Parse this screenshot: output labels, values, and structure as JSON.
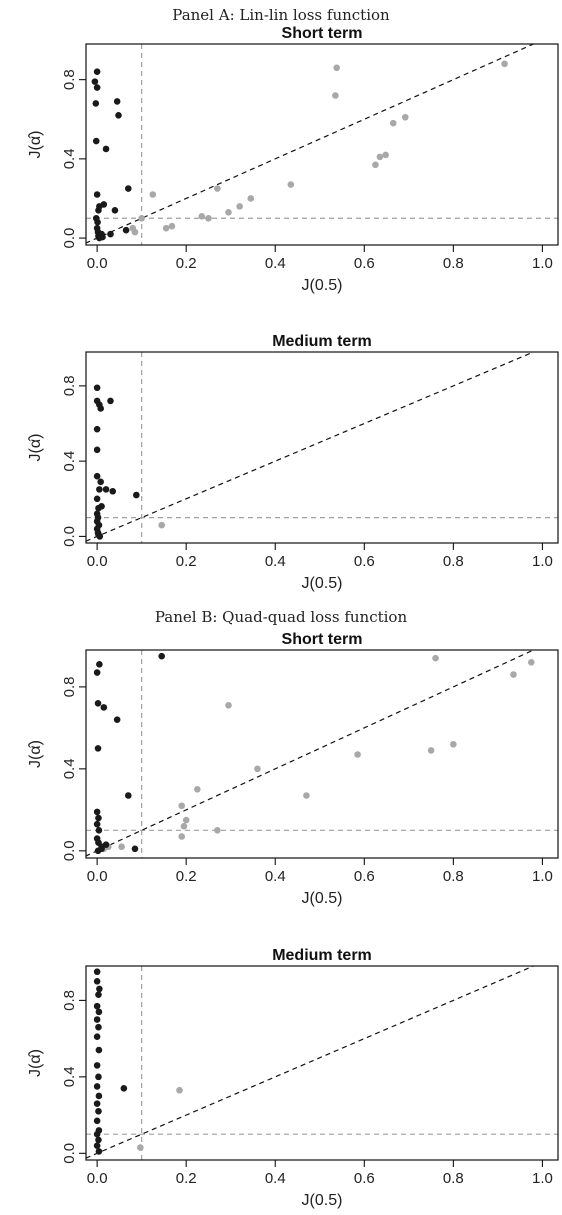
{
  "panels": [
    {
      "title": "Panel A: Lin-lin loss function"
    },
    {
      "title": "Panel B: Quad-quad loss function"
    }
  ],
  "styles": {
    "dark_point": "#1a1a1a",
    "light_point": "#a8a8a8",
    "diagonal": "#111111",
    "threshold": "#a0a0a0"
  },
  "chart_data": [
    {
      "type": "scatter",
      "panel": "Panel A: Lin-lin loss function",
      "title": "Short term",
      "xlabel": "J(0.5)",
      "ylabel": "J(α̂)",
      "xlim": [
        0,
        1.0
      ],
      "ylim": [
        0,
        0.9
      ],
      "xticks": [
        0.0,
        0.2,
        0.4,
        0.6,
        0.8,
        1.0
      ],
      "yticks": [
        0.0,
        0.4,
        0.8
      ],
      "xtick_labels": [
        "0.0",
        "0.2",
        "0.4",
        "0.6",
        "0.8",
        "1.0"
      ],
      "ytick_labels": [
        "0.0",
        "0.4",
        "0.8"
      ],
      "reference_lines": {
        "diagonal": "y = x",
        "horizontal": 0.1,
        "vertical": 0.1
      },
      "series": [
        {
          "color": "dark",
          "points": [
            [
              0,
              0.84
            ],
            [
              -0.005,
              0.79
            ],
            [
              0,
              0.76
            ],
            [
              -0.003,
              0.68
            ],
            [
              -0.002,
              0.49
            ],
            [
              0.02,
              0.45
            ],
            [
              0.045,
              0.69
            ],
            [
              0.048,
              0.62
            ],
            [
              0.07,
              0.25
            ],
            [
              0.015,
              0.17
            ],
            [
              0,
              0.22
            ],
            [
              0.005,
              0.16
            ],
            [
              0.003,
              0.14
            ],
            [
              -0.002,
              0.1
            ],
            [
              0.001,
              0.08
            ],
            [
              0.04,
              0.14
            ],
            [
              0,
              0.05
            ],
            [
              0.002,
              0.03
            ],
            [
              0.003,
              0.01
            ],
            [
              0.01,
              0.02
            ],
            [
              0.03,
              0.02
            ],
            [
              0.065,
              0.04
            ],
            [
              0.005,
              0.0
            ],
            [
              0.012,
              0.005
            ]
          ]
        },
        {
          "color": "light",
          "points": [
            [
              0.125,
              0.22
            ],
            [
              0.1,
              0.1
            ],
            [
              0.08,
              0.05
            ],
            [
              0.085,
              0.03
            ],
            [
              0.155,
              0.05
            ],
            [
              0.168,
              0.06
            ],
            [
              0.235,
              0.11
            ],
            [
              0.25,
              0.1
            ],
            [
              0.27,
              0.25
            ],
            [
              0.295,
              0.13
            ],
            [
              0.32,
              0.16
            ],
            [
              0.345,
              0.2
            ],
            [
              0.435,
              0.27
            ],
            [
              0.535,
              0.72
            ],
            [
              0.538,
              0.86
            ],
            [
              0.625,
              0.37
            ],
            [
              0.635,
              0.41
            ],
            [
              0.648,
              0.42
            ],
            [
              0.665,
              0.58
            ],
            [
              0.692,
              0.61
            ],
            [
              0.915,
              0.88
            ]
          ]
        }
      ]
    },
    {
      "type": "scatter",
      "panel": "Panel A: Lin-lin loss function",
      "title": "Medium term",
      "xlabel": "J(0.5)",
      "ylabel": "J(α̂)",
      "xlim": [
        0,
        1.0
      ],
      "ylim": [
        0,
        0.9
      ],
      "xticks": [
        0.0,
        0.2,
        0.4,
        0.6,
        0.8,
        1.0
      ],
      "yticks": [
        0.0,
        0.4,
        0.8
      ],
      "xtick_labels": [
        "0.0",
        "0.2",
        "0.4",
        "0.6",
        "0.8",
        "1.0"
      ],
      "ytick_labels": [
        "0.0",
        "0.4",
        "0.8"
      ],
      "reference_lines": {
        "diagonal": "y = x",
        "horizontal": 0.1,
        "vertical": 0.1
      },
      "series": [
        {
          "color": "dark",
          "points": [
            [
              0,
              0.79
            ],
            [
              0,
              0.72
            ],
            [
              0.005,
              0.7
            ],
            [
              0.008,
              0.68
            ],
            [
              0.03,
              0.72
            ],
            [
              0,
              0.57
            ],
            [
              0,
              0.46
            ],
            [
              0,
              0.32
            ],
            [
              0.008,
              0.29
            ],
            [
              0.005,
              0.25
            ],
            [
              0.02,
              0.25
            ],
            [
              0.035,
              0.24
            ],
            [
              0.088,
              0.22
            ],
            [
              0,
              0.2
            ],
            [
              0.003,
              0.15
            ],
            [
              0.01,
              0.16
            ],
            [
              0,
              0.12
            ],
            [
              0.002,
              0.1
            ],
            [
              0,
              0.08
            ],
            [
              0.004,
              0.06
            ],
            [
              0,
              0.04
            ],
            [
              0.002,
              0.02
            ],
            [
              0.003,
              0.01
            ],
            [
              0.006,
              0.0
            ]
          ]
        },
        {
          "color": "light",
          "points": [
            [
              0.145,
              0.06
            ]
          ]
        }
      ]
    },
    {
      "type": "scatter",
      "panel": "Panel B: Quad-quad loss function",
      "title": "Short term",
      "xlabel": "J(0.5)",
      "ylabel": "J(α̂)",
      "xlim": [
        0,
        1.0
      ],
      "ylim": [
        0,
        0.9
      ],
      "xticks": [
        0.0,
        0.2,
        0.4,
        0.6,
        0.8,
        1.0
      ],
      "yticks": [
        0.0,
        0.4,
        0.8
      ],
      "xtick_labels": [
        "0.0",
        "0.2",
        "0.4",
        "0.6",
        "0.8",
        "1.0"
      ],
      "ytick_labels": [
        "0.0",
        "0.4",
        "0.8"
      ],
      "reference_lines": {
        "diagonal": "y = x",
        "horizontal": 0.1,
        "vertical": 0.1
      },
      "series": [
        {
          "color": "dark",
          "points": [
            [
              0.005,
              0.91
            ],
            [
              0,
              0.87
            ],
            [
              0.002,
              0.72
            ],
            [
              0.015,
              0.7
            ],
            [
              0.045,
              0.64
            ],
            [
              0.002,
              0.5
            ],
            [
              0.07,
              0.27
            ],
            [
              0,
              0.19
            ],
            [
              0.003,
              0.16
            ],
            [
              0,
              0.13
            ],
            [
              0.004,
              0.1
            ],
            [
              0,
              0.06
            ],
            [
              0.003,
              0.04
            ],
            [
              0.01,
              0.02
            ],
            [
              0.02,
              0.03
            ],
            [
              0.01,
              0.01
            ],
            [
              0.085,
              0.01
            ],
            [
              0.145,
              0.95
            ],
            [
              0.002,
              0.0
            ]
          ]
        },
        {
          "color": "light",
          "points": [
            [
              0.015,
              0.01
            ],
            [
              0.025,
              0.02
            ],
            [
              0.055,
              0.02
            ],
            [
              0.19,
              0.22
            ],
            [
              0.195,
              0.12
            ],
            [
              0.2,
              0.15
            ],
            [
              0.19,
              0.07
            ],
            [
              0.225,
              0.3
            ],
            [
              0.27,
              0.1
            ],
            [
              0.295,
              0.71
            ],
            [
              0.36,
              0.4
            ],
            [
              0.47,
              0.27
            ],
            [
              0.585,
              0.47
            ],
            [
              0.75,
              0.49
            ],
            [
              0.76,
              0.94
            ],
            [
              0.8,
              0.52
            ],
            [
              0.935,
              0.86
            ],
            [
              0.975,
              0.92
            ]
          ]
        }
      ]
    },
    {
      "type": "scatter",
      "panel": "Panel B: Quad-quad loss function",
      "title": "Medium term",
      "xlabel": "J(0.5)",
      "ylabel": "J(α̂)",
      "xlim": [
        0,
        1.0
      ],
      "ylim": [
        0,
        0.9
      ],
      "xticks": [
        0.0,
        0.2,
        0.4,
        0.6,
        0.8,
        1.0
      ],
      "yticks": [
        0.0,
        0.4,
        0.8
      ],
      "xtick_labels": [
        "0.0",
        "0.2",
        "0.4",
        "0.6",
        "0.8",
        "1.0"
      ],
      "ytick_labels": [
        "0.0",
        "0.4",
        "0.8"
      ],
      "reference_lines": {
        "diagonal": "y = x",
        "horizontal": 0.1,
        "vertical": 0.1
      },
      "series": [
        {
          "color": "dark",
          "points": [
            [
              0,
              0.95
            ],
            [
              0,
              0.9
            ],
            [
              0.005,
              0.86
            ],
            [
              0.003,
              0.83
            ],
            [
              0,
              0.77
            ],
            [
              0.004,
              0.74
            ],
            [
              0,
              0.7
            ],
            [
              0.003,
              0.66
            ],
            [
              0,
              0.61
            ],
            [
              0.004,
              0.54
            ],
            [
              0,
              0.46
            ],
            [
              0.003,
              0.4
            ],
            [
              0,
              0.35
            ],
            [
              0.004,
              0.3
            ],
            [
              0,
              0.26
            ],
            [
              0.003,
              0.22
            ],
            [
              0,
              0.17
            ],
            [
              0.004,
              0.12
            ],
            [
              0,
              0.1
            ],
            [
              0.003,
              0.07
            ],
            [
              0,
              0.04
            ],
            [
              0.004,
              0.01
            ],
            [
              0.06,
              0.34
            ]
          ]
        },
        {
          "color": "light",
          "points": [
            [
              0.185,
              0.33
            ],
            [
              0.097,
              0.03
            ]
          ]
        }
      ]
    }
  ]
}
